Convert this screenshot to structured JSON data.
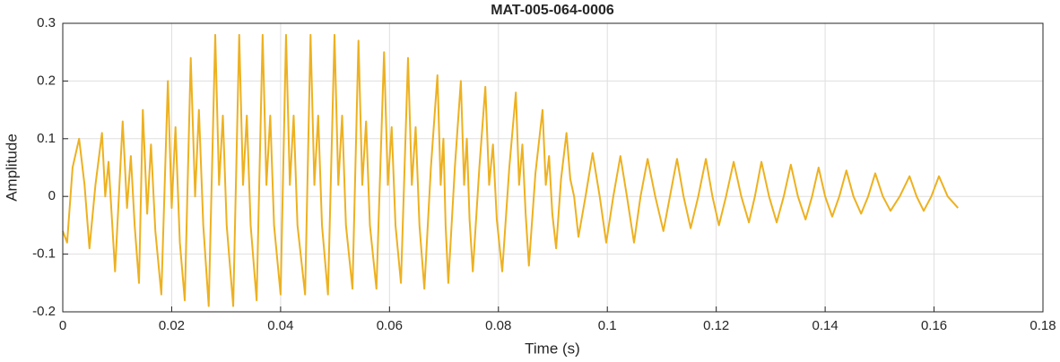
{
  "chart_data": {
    "type": "line",
    "title": "MAT-005-064-0006",
    "x_label": "Time (s)",
    "y_label": "Amplitude",
    "color": "#EDB120",
    "grid": true,
    "xlim": [
      0,
      0.18
    ],
    "xticks": [
      0,
      0.02,
      0.04,
      0.06,
      0.08,
      0.1,
      0.12,
      0.14,
      0.16,
      0.18
    ],
    "ylim": [
      -0.2,
      0.3
    ],
    "yticks": [
      -0.2,
      -0.1,
      0,
      0.1,
      0.2,
      0.3
    ],
    "x": [
      0,
      0.0008,
      0.0018,
      0.003,
      0.004,
      0.0049,
      0.006,
      0.0072,
      0.0078,
      0.0084,
      0.0096,
      0.0103,
      0.011,
      0.0118,
      0.0125,
      0.0132,
      0.014,
      0.0147,
      0.0155,
      0.0162,
      0.017,
      0.0181,
      0.0193,
      0.02,
      0.0207,
      0.0215,
      0.0224,
      0.0235,
      0.0243,
      0.025,
      0.0258,
      0.0268,
      0.028,
      0.0287,
      0.0294,
      0.0301,
      0.0313,
      0.0324,
      0.0331,
      0.0338,
      0.0345,
      0.0356,
      0.0367,
      0.0374,
      0.0381,
      0.0388,
      0.04,
      0.041,
      0.0417,
      0.0424,
      0.0431,
      0.0445,
      0.0455,
      0.0462,
      0.0469,
      0.0476,
      0.0487,
      0.0499,
      0.0506,
      0.0513,
      0.052,
      0.0532,
      0.0543,
      0.055,
      0.0557,
      0.0564,
      0.0576,
      0.059,
      0.0597,
      0.0604,
      0.0611,
      0.0621,
      0.0634,
      0.0641,
      0.0648,
      0.0655,
      0.0664,
      0.0676,
      0.0688,
      0.0694,
      0.0699,
      0.0703,
      0.0708,
      0.072,
      0.0731,
      0.0737,
      0.0742,
      0.0747,
      0.0753,
      0.0765,
      0.0776,
      0.0783,
      0.079,
      0.0797,
      0.0807,
      0.082,
      0.0832,
      0.0838,
      0.0844,
      0.085,
      0.0856,
      0.0868,
      0.0881,
      0.0887,
      0.0893,
      0.0899,
      0.0906,
      0.0915,
      0.0925,
      0.0932,
      0.0939,
      0.0947,
      0.096,
      0.0973,
      0.0986,
      0.0998,
      0.1011,
      0.1024,
      0.1036,
      0.1049,
      0.1061,
      0.1074,
      0.1088,
      0.1103,
      0.1115,
      0.1128,
      0.114,
      0.1153,
      0.1167,
      0.1181,
      0.1193,
      0.1205,
      0.1218,
      0.1232,
      0.1246,
      0.126,
      0.1271,
      0.1283,
      0.1297,
      0.1311,
      0.1324,
      0.1337,
      0.135,
      0.1364,
      0.1376,
      0.1388,
      0.14,
      0.1413,
      0.1426,
      0.1439,
      0.1452,
      0.1466,
      0.1479,
      0.1492,
      0.1506,
      0.152,
      0.1537,
      0.1555,
      0.1568,
      0.1581,
      0.1595,
      0.1609,
      0.1625,
      0.1644
    ],
    "values": [
      -0.06,
      -0.08,
      0.05,
      0.1,
      0.02,
      -0.09,
      0.02,
      0.11,
      0.0,
      0.06,
      -0.13,
      0.0,
      0.13,
      -0.02,
      0.07,
      -0.05,
      -0.15,
      0.15,
      -0.03,
      0.09,
      -0.06,
      -0.17,
      0.2,
      -0.02,
      0.12,
      -0.08,
      -0.18,
      0.24,
      0.0,
      0.15,
      -0.05,
      -0.19,
      0.28,
      0.02,
      0.14,
      -0.05,
      -0.19,
      0.28,
      0.02,
      0.14,
      -0.05,
      -0.18,
      0.28,
      0.02,
      0.14,
      -0.05,
      -0.17,
      0.28,
      0.02,
      0.14,
      -0.05,
      -0.17,
      0.28,
      0.02,
      0.14,
      -0.05,
      -0.17,
      0.28,
      0.02,
      0.14,
      -0.05,
      -0.16,
      0.27,
      0.02,
      0.13,
      -0.05,
      -0.16,
      0.25,
      0.02,
      0.12,
      -0.05,
      -0.15,
      0.24,
      0.02,
      0.12,
      -0.05,
      -0.16,
      0.05,
      0.21,
      0.02,
      0.1,
      -0.05,
      -0.15,
      0.05,
      0.2,
      0.02,
      0.1,
      -0.04,
      -0.13,
      0.05,
      0.19,
      0.02,
      0.09,
      -0.04,
      -0.13,
      0.05,
      0.18,
      0.02,
      0.09,
      -0.03,
      -0.12,
      0.04,
      0.15,
      0.02,
      0.07,
      -0.03,
      -0.09,
      0.03,
      0.11,
      0.03,
      0.0,
      -0.07,
      0.0,
      0.075,
      0.0,
      -0.08,
      0.0,
      0.07,
      0.0,
      -0.08,
      0.0,
      0.065,
      0.0,
      -0.06,
      0.0,
      0.065,
      0.0,
      -0.055,
      0.0,
      0.065,
      0.0,
      -0.05,
      0.0,
      0.06,
      0.0,
      -0.045,
      0.0,
      0.06,
      0.0,
      -0.045,
      0.0,
      0.055,
      0.0,
      -0.04,
      0.0,
      0.05,
      0.0,
      -0.035,
      0.0,
      0.045,
      0.0,
      -0.03,
      0.0,
      0.04,
      0.0,
      -0.025,
      0.0,
      0.035,
      0.0,
      -0.025,
      0.0,
      0.035,
      0.0,
      -0.02
    ]
  }
}
